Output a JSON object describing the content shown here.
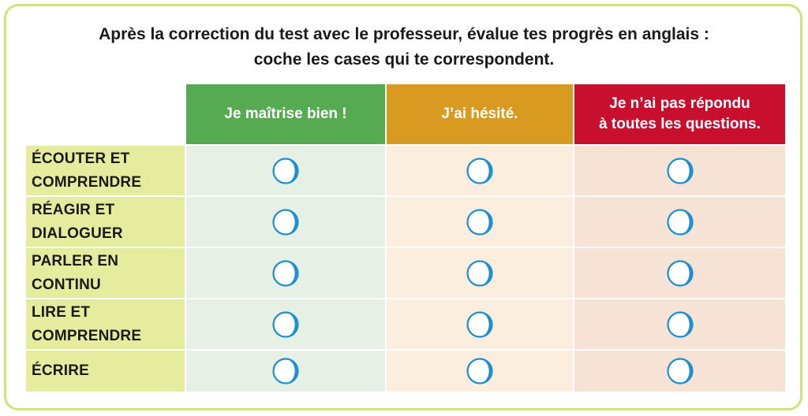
{
  "instructions": {
    "line1": "Après la correction du test avec le professeur, évalue tes progrès en anglais :",
    "line2": "coche les cases qui te correspondent."
  },
  "columns": [
    {
      "line1": "Je maîtrise bien !",
      "line2": "",
      "header_color": "#56aa52",
      "cell_color": "#e7f0e5"
    },
    {
      "line1": "J’ai hésité.",
      "line2": "",
      "header_color": "#d99a22",
      "cell_color": "#fbeedf"
    },
    {
      "line1": "Je n’ai pas répondu",
      "line2": "à toutes les questions.",
      "header_color": "#c8102e",
      "cell_color": "#f7e2d6"
    }
  ],
  "rows": [
    {
      "line1": "ÉCOUTER ET",
      "line2": "COMPRENDRE"
    },
    {
      "line1": "RÉAGIR ET",
      "line2": "DIALOGUER"
    },
    {
      "line1": "PARLER EN",
      "line2": "CONTINU"
    },
    {
      "line1": "LIRE ET",
      "line2": "COMPRENDRE"
    },
    {
      "line1": "ÉCRIRE",
      "line2": ""
    }
  ],
  "colors": {
    "frame_border": "#d2e27a",
    "row_label_bg": "#e5ec9e",
    "checkbox_circle": "#1b8fd1"
  },
  "icons": {
    "checkbox": "circle-checkbox-icon"
  }
}
